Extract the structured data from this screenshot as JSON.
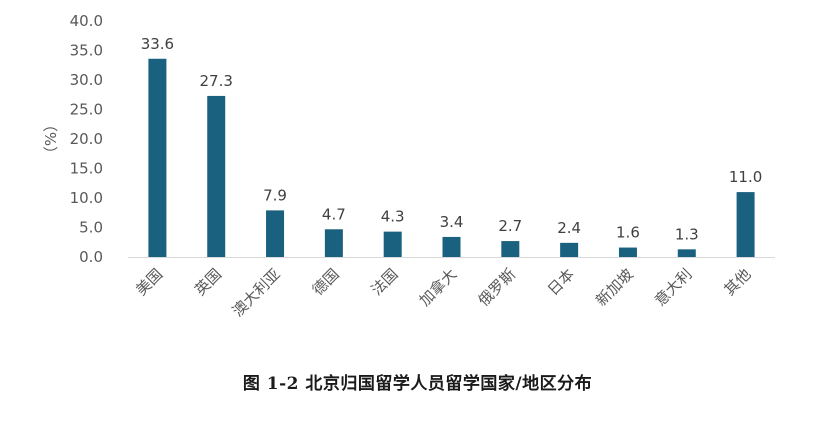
{
  "chart_data": {
    "type": "bar",
    "categories": [
      "美国",
      "英国",
      "澳大利亚",
      "德国",
      "法国",
      "加拿大",
      "俄罗斯",
      "日本",
      "新加坡",
      "意大利",
      "其他"
    ],
    "values": [
      33.6,
      27.3,
      7.9,
      4.7,
      4.3,
      3.4,
      2.7,
      2.4,
      1.6,
      1.3,
      11.0
    ],
    "value_labels": [
      "33.6",
      "27.3",
      "7.9",
      "4.7",
      "4.3",
      "3.4",
      "2.7",
      "2.4",
      "1.6",
      "1.3",
      "11.0"
    ],
    "ylabel": "（%）",
    "ylim": [
      0,
      40
    ],
    "yticks": [
      0,
      5,
      10,
      15,
      20,
      25,
      30,
      35,
      40
    ],
    "ytick_labels": [
      "0.0",
      "5.0",
      "10.0",
      "15.0",
      "20.0",
      "25.0",
      "30.0",
      "35.0",
      "40.0"
    ],
    "grid": false,
    "bar_color": "#1a6180",
    "axis_color": "#d9d9d9",
    "caption": "图 1-2  北京归国留学人员留学国家/地区分布"
  }
}
